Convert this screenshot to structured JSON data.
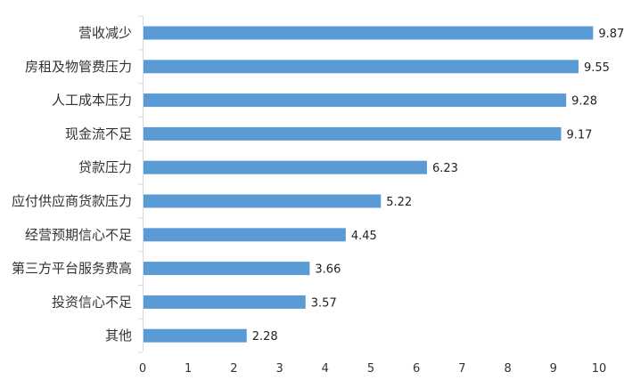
{
  "chart_data": {
    "type": "bar",
    "orientation": "horizontal",
    "categories": [
      "营收减少",
      "房租及物管费压力",
      "人工成本压力",
      "现金流不足",
      "贷款压力",
      "应付供应商货款压力",
      "经营预期信心不足",
      "第三方平台服务费高",
      "投资信心不足",
      "其他"
    ],
    "values": [
      9.87,
      9.55,
      9.28,
      9.17,
      6.23,
      5.22,
      4.45,
      3.66,
      3.57,
      2.28
    ],
    "value_labels": [
      "9.87",
      "9.55",
      "9.28",
      "9.17",
      "6.23",
      "5.22",
      "4.45",
      "3.66",
      "3.57",
      "2.28"
    ],
    "title": "",
    "xlabel": "",
    "ylabel": "",
    "xlim": [
      0,
      10
    ],
    "x_ticks": [
      "0",
      "1",
      "2",
      "3",
      "4",
      "5",
      "6",
      "7",
      "8",
      "9",
      "10"
    ],
    "bar_color": "#5b9bd5",
    "grid": false,
    "legend": "none"
  }
}
